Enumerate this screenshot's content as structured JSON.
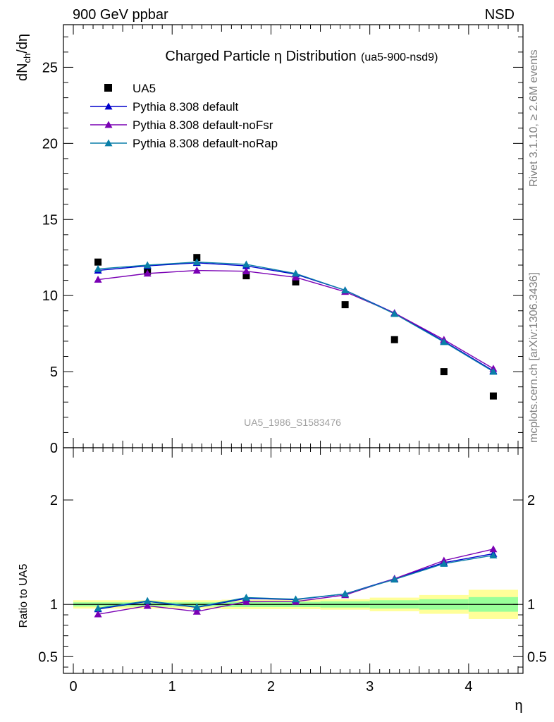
{
  "header": {
    "left": "900 GeV ppbar",
    "right": "NSD"
  },
  "side_labels": {
    "rivet": "Rivet 3.1.10, ≥ 2.6M events",
    "mcplots": "mcplots.cern.ch [arXiv:1306.3436]"
  },
  "colors": {
    "ua5": "#000000",
    "pythia_default": "#0000cc",
    "pythia_nofsr": "#7a00b4",
    "pythia_norap": "#0a7fa8",
    "band_inner": "#99ff99",
    "band_outer": "#ffff99"
  },
  "chart_data": [
    {
      "type": "scatter",
      "title": "Charged Particle η Distribution",
      "subtitle": "(ua5-900-nsd9)",
      "watermark": "UA5_1986_S1583476",
      "ylabel_main": "dN",
      "ylabel_sub": "ch",
      "ylabel_tail": "/dη",
      "ylim": [
        0,
        27.8
      ],
      "xlim": [
        -0.1,
        4.55
      ],
      "yticks": [
        {
          "v": 0,
          "label": "0"
        },
        {
          "v": 5,
          "label": "5"
        },
        {
          "v": 10,
          "label": "10"
        },
        {
          "v": 15,
          "label": "15"
        },
        {
          "v": 20,
          "label": "20"
        },
        {
          "v": 25,
          "label": "25"
        }
      ],
      "x": [
        0.25,
        0.75,
        1.25,
        1.75,
        2.25,
        2.75,
        3.25,
        3.75,
        4.25
      ],
      "legend": {
        "placement": "top-left",
        "entries": [
          "UA5",
          "Pythia 8.308 default",
          "Pythia 8.308 default-noFsr",
          "Pythia 8.308 default-noRap"
        ]
      },
      "series": [
        {
          "name": "UA5",
          "marker": "square",
          "values": [
            12.2,
            11.6,
            12.5,
            11.3,
            10.9,
            9.4,
            7.1,
            5.0,
            3.4
          ]
        },
        {
          "name": "Pythia 8.308 default",
          "marker": "triangle",
          "values": [
            11.65,
            11.95,
            12.15,
            11.95,
            11.4,
            10.35,
            8.85,
            7.0,
            5.05
          ]
        },
        {
          "name": "Pythia 8.308 default-noFsr",
          "marker": "triangle",
          "values": [
            11.05,
            11.45,
            11.65,
            11.6,
            11.2,
            10.25,
            8.85,
            7.1,
            5.2
          ]
        },
        {
          "name": "Pythia 8.308 default-noRap",
          "marker": "triangle",
          "values": [
            11.75,
            12.0,
            12.2,
            12.05,
            11.45,
            10.35,
            8.8,
            6.95,
            5.0
          ]
        }
      ]
    },
    {
      "type": "line",
      "ylabel": "Ratio to UA5",
      "xlabel": "η",
      "ylim": [
        0.34,
        2.5
      ],
      "xlim": [
        -0.1,
        4.55
      ],
      "yticks": [
        {
          "v": 0.5,
          "label": "0.5"
        },
        {
          "v": 1,
          "label": "1"
        },
        {
          "v": 2,
          "label": "2"
        }
      ],
      "xticks": [
        {
          "v": 0,
          "label": "0"
        },
        {
          "v": 1,
          "label": "1"
        },
        {
          "v": 2,
          "label": "2"
        },
        {
          "v": 3,
          "label": "3"
        },
        {
          "v": 4,
          "label": "4"
        }
      ],
      "x": [
        0.25,
        0.75,
        1.25,
        1.75,
        2.25,
        2.75,
        3.25,
        3.75,
        4.25
      ],
      "bin_edges": [
        0.0,
        0.5,
        1.0,
        1.5,
        2.0,
        2.5,
        3.0,
        3.5,
        4.0,
        4.5
      ],
      "band_inner": [
        0.02,
        0.02,
        0.02,
        0.025,
        0.025,
        0.03,
        0.04,
        0.05,
        0.07
      ],
      "band_outer": [
        0.04,
        0.04,
        0.04,
        0.045,
        0.045,
        0.05,
        0.065,
        0.09,
        0.14
      ],
      "series": [
        {
          "name": "Pythia 8.308 default",
          "values": [
            0.955,
            1.03,
            0.972,
            1.058,
            1.046,
            1.101,
            1.246,
            1.4,
            1.485
          ]
        },
        {
          "name": "Pythia 8.308 default-noFsr",
          "values": [
            0.906,
            0.987,
            0.932,
            1.026,
            1.027,
            1.09,
            1.246,
            1.42,
            1.529
          ]
        },
        {
          "name": "Pythia 8.308 default-noRap",
          "values": [
            0.963,
            1.034,
            0.976,
            1.066,
            1.05,
            1.101,
            1.239,
            1.39,
            1.47
          ]
        }
      ]
    }
  ]
}
